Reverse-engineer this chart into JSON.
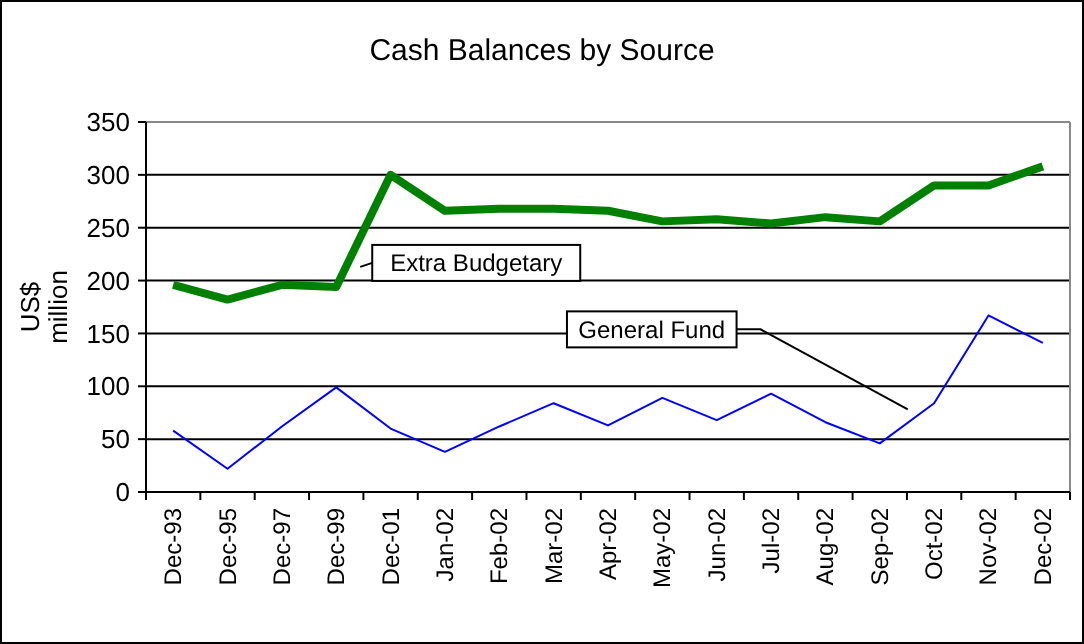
{
  "chart_data": {
    "type": "line",
    "title": "Cash Balances by Source",
    "ylabel": "US$ million",
    "categories": [
      "Dec-93",
      "Dec-95",
      "Dec-97",
      "Dec-99",
      "Dec-01",
      "Jan-02",
      "Feb-02",
      "Mar-02",
      "Apr-02",
      "May-02",
      "Jun-02",
      "Jul-02",
      "Aug-02",
      "Sep-02",
      "Oct-02",
      "Nov-02",
      "Dec-02"
    ],
    "series": [
      {
        "name": "Extra Budgetary",
        "color": "#008000",
        "values": [
          196,
          182,
          196,
          194,
          300,
          266,
          268,
          268,
          266,
          256,
          258,
          254,
          260,
          256,
          290,
          290,
          308
        ]
      },
      {
        "name": "General Fund",
        "color": "#0000ff",
        "values": [
          58,
          22,
          62,
          99,
          60,
          38,
          62,
          84,
          63,
          89,
          68,
          93,
          66,
          46,
          84,
          167,
          141
        ]
      }
    ],
    "ylim": [
      0,
      350
    ],
    "yticks": [
      0,
      50,
      100,
      150,
      200,
      250,
      300,
      350
    ],
    "grid": "y",
    "marker": "none",
    "line_style": "solid"
  }
}
